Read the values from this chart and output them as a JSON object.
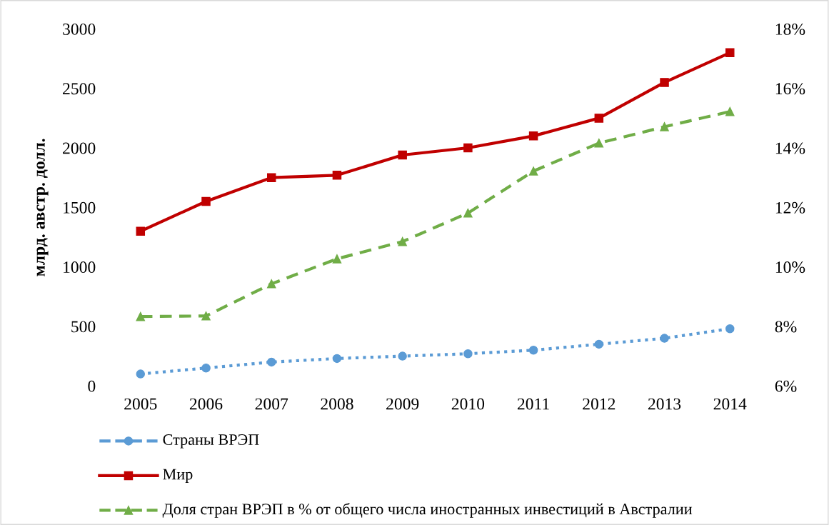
{
  "chart_data": {
    "type": "line",
    "ylabel": "млрд. австр. долл.",
    "categories": [
      "2005",
      "2006",
      "2007",
      "2008",
      "2009",
      "2010",
      "2011",
      "2012",
      "2013",
      "2014"
    ],
    "ylim": [
      0,
      3000
    ],
    "yticks": [
      0,
      500,
      1000,
      1500,
      2000,
      2500,
      3000
    ],
    "y2lim": [
      6,
      18
    ],
    "y2ticks": [
      {
        "value": 6,
        "label": "6%"
      },
      {
        "value": 8,
        "label": "8%"
      },
      {
        "value": 10,
        "label": "10%"
      },
      {
        "value": 12,
        "label": "12%"
      },
      {
        "value": 14,
        "label": "14%"
      },
      {
        "value": 16,
        "label": "16%"
      },
      {
        "value": 18,
        "label": "18%"
      }
    ],
    "grid": false,
    "legend": "bottom",
    "series": [
      {
        "name": "Страны ВРЭП",
        "color": "#5b9bd5",
        "marker": "circle",
        "line_style": "dotted",
        "values": [
          100,
          150,
          200,
          230,
          250,
          270,
          300,
          350,
          400,
          480
        ]
      },
      {
        "name": "Мир",
        "color": "#c00000",
        "marker": "square",
        "line_style": "solid",
        "values": [
          1300,
          1550,
          1750,
          1770,
          1940,
          2000,
          2100,
          2250,
          2550,
          2800
        ]
      },
      {
        "name": "Доля стран ВРЭП в % от общего числа иностранных инвестиций в Австралии",
        "color": "#70ad47",
        "marker": "triangle",
        "line_style": "dashed",
        "axis": "y2",
        "values": [
          8.33,
          8.35,
          9.43,
          10.27,
          10.85,
          11.81,
          13.22,
          14.16,
          14.71,
          15.22
        ]
      }
    ]
  }
}
